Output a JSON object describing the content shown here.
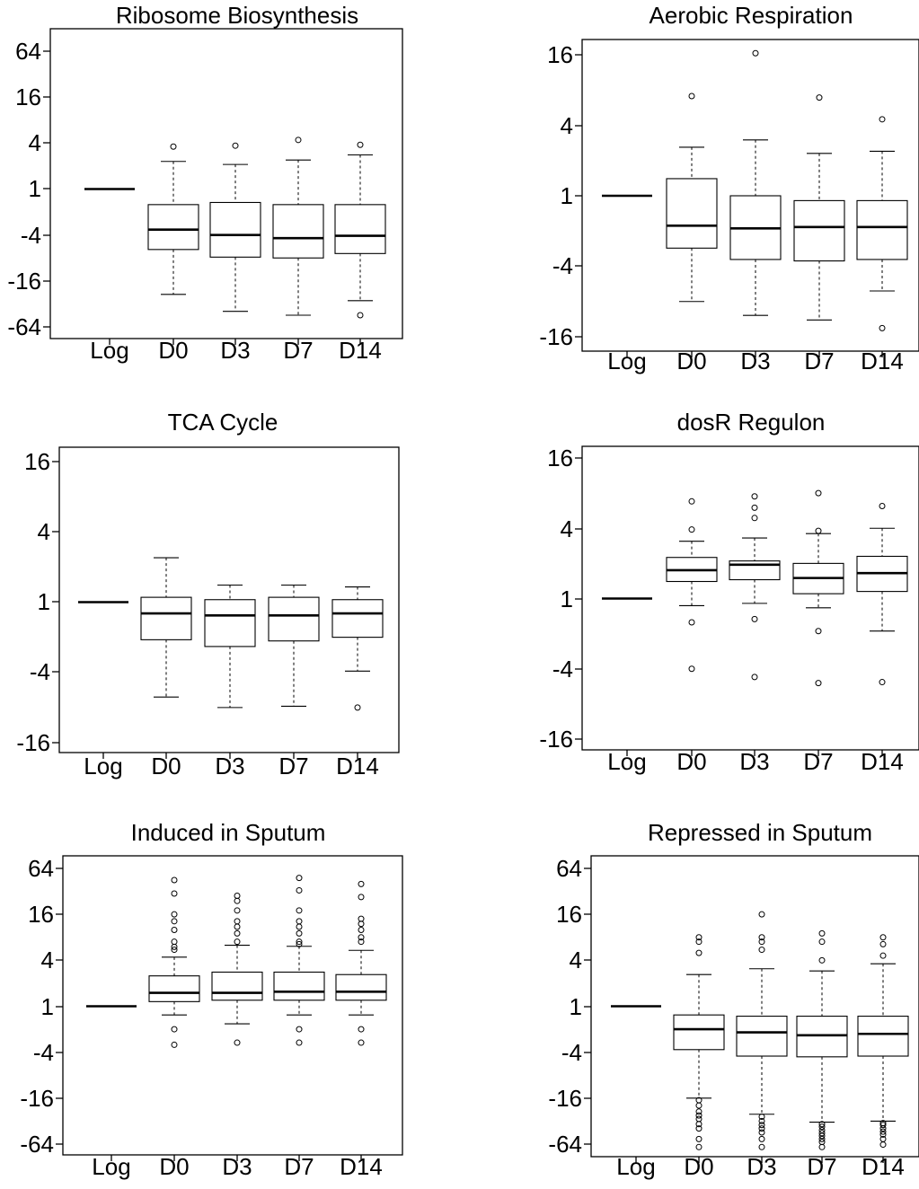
{
  "chart_data": [
    {
      "type": "boxplot",
      "title": "Ribosome Biosynthesis",
      "y_scale": "log2",
      "yticks": [
        "64",
        "16",
        "4",
        "1",
        "-4",
        "-16",
        "-64"
      ],
      "ylim": [
        -90,
        90
      ],
      "categories": [
        "Log",
        "D0",
        "D3",
        "D7",
        "D14"
      ],
      "log_line": 1,
      "boxes": [
        {
          "low": -24,
          "q1": -6.2,
          "median": -3.4,
          "q3": -1.6,
          "high": 2.3,
          "outliers": [
            3.6
          ]
        },
        {
          "low": -40,
          "q1": -7.8,
          "median": -4.0,
          "q3": -1.5,
          "high": 2.1,
          "outliers": [
            3.7
          ]
        },
        {
          "low": -45,
          "q1": -8.0,
          "median": -4.4,
          "q3": -1.6,
          "high": 2.4,
          "outliers": [
            4.4
          ]
        },
        {
          "low": -29,
          "q1": -7.0,
          "median": -4.1,
          "q3": -1.6,
          "high": 2.8,
          "outliers": [
            3.8,
            -45
          ]
        }
      ]
    },
    {
      "type": "boxplot",
      "title": "Aerobic Respiration",
      "y_scale": "log2",
      "yticks": [
        "16",
        "4",
        "1",
        "-4",
        "-16"
      ],
      "ylim": [
        -22,
        22
      ],
      "categories": [
        "Log",
        "D0",
        "D3",
        "D7",
        "D14"
      ],
      "log_line": 1,
      "boxes": [
        {
          "low": -8.0,
          "q1": -2.8,
          "median": -1.8,
          "q3": 1.4,
          "high": 2.6,
          "outliers": [
            7.1
          ]
        },
        {
          "low": -10.5,
          "q1": -3.5,
          "median": -1.9,
          "q3": -1.0,
          "high": 3.0,
          "outliers": [
            16.5
          ]
        },
        {
          "low": -11.5,
          "q1": -3.6,
          "median": -1.85,
          "q3": -1.1,
          "high": 2.3,
          "outliers": [
            6.9
          ]
        },
        {
          "low": -6.5,
          "q1": -3.5,
          "median": -1.85,
          "q3": -1.1,
          "high": 2.4,
          "outliers": [
            4.5,
            -13.5
          ]
        }
      ]
    },
    {
      "type": "boxplot",
      "title": "TCA Cycle",
      "y_scale": "log2",
      "yticks": [
        "16",
        "4",
        "1",
        "-4",
        "-16"
      ],
      "ylim": [
        -22,
        22
      ],
      "categories": [
        "Log",
        "D0",
        "D3",
        "D7",
        "D14"
      ],
      "log_line": 1,
      "boxes": [
        {
          "low": -6.5,
          "q1": -2.1,
          "median": -1.25,
          "q3": 1.1,
          "high": 2.4,
          "outliers": []
        },
        {
          "low": -8.0,
          "q1": -2.4,
          "median": -1.3,
          "q3": 1.05,
          "high": 1.4,
          "outliers": []
        },
        {
          "low": -7.8,
          "q1": -2.15,
          "median": -1.3,
          "q3": 1.1,
          "high": 1.4,
          "outliers": []
        },
        {
          "low": -3.9,
          "q1": -2.0,
          "median": -1.25,
          "q3": 1.05,
          "high": 1.35,
          "outliers": [
            -8.0
          ]
        }
      ]
    },
    {
      "type": "boxplot",
      "title": "dosR Regulon",
      "y_scale": "log2",
      "yticks": [
        "16",
        "4",
        "1",
        "-4",
        "-16"
      ],
      "ylim": [
        -22,
        22
      ],
      "categories": [
        "Log",
        "D0",
        "D3",
        "D7",
        "D14"
      ],
      "log_line": 1,
      "boxes": [
        {
          "low": -1.15,
          "q1": 1.4,
          "median": 1.75,
          "q3": 2.25,
          "high": 3.1,
          "outliers": [
            6.8,
            3.9,
            -1.6,
            -4.0
          ]
        },
        {
          "low": -1.1,
          "q1": 1.45,
          "median": 1.95,
          "q3": 2.1,
          "high": 3.3,
          "outliers": [
            7.5,
            6.0,
            4.9,
            -1.5,
            -4.7
          ]
        },
        {
          "low": -1.2,
          "q1": 1.1,
          "median": 1.5,
          "q3": 2.0,
          "high": 3.6,
          "outliers": [
            8.0,
            3.8,
            -1.9,
            -5.3
          ]
        },
        {
          "low": -1.9,
          "q1": 1.15,
          "median": 1.65,
          "q3": 2.3,
          "high": 4.0,
          "outliers": [
            6.2,
            -5.2
          ]
        }
      ]
    },
    {
      "type": "boxplot",
      "title": "Induced in Sputum",
      "y_scale": "log2",
      "yticks": [
        "64",
        "16",
        "4",
        "1",
        "-4",
        "-16",
        "-64"
      ],
      "ylim": [
        -90,
        90
      ],
      "categories": [
        "Log",
        "D0",
        "D3",
        "D7",
        "D14"
      ],
      "log_line": 1,
      "boxes": [
        {
          "low": -1.3,
          "q1": 1.15,
          "median": 1.5,
          "q3": 2.5,
          "high": 4.4,
          "outliers": [
            45,
            30,
            16,
            13,
            10,
            7,
            6,
            5.5,
            -2.0,
            -3.2
          ]
        },
        {
          "low": -1.7,
          "q1": 1.2,
          "median": 1.5,
          "q3": 2.8,
          "high": 6.3,
          "outliers": [
            28,
            24,
            18,
            13,
            11,
            9,
            7,
            -3.0
          ]
        },
        {
          "low": -1.3,
          "q1": 1.2,
          "median": 1.55,
          "q3": 2.8,
          "high": 6.1,
          "outliers": [
            48,
            33,
            18,
            13,
            11,
            9,
            7,
            6.5,
            -2.0,
            -3.0
          ]
        },
        {
          "low": -1.3,
          "q1": 1.2,
          "median": 1.55,
          "q3": 2.6,
          "high": 5.4,
          "outliers": [
            40,
            27,
            14,
            12,
            10,
            8,
            7,
            -2.0,
            -3.0
          ]
        }
      ]
    },
    {
      "type": "boxplot",
      "title": "Repressed in Sputum",
      "y_scale": "log2",
      "yticks": [
        "64",
        "16",
        "4",
        "1",
        "-4",
        "-16",
        "-64"
      ],
      "ylim": [
        -80,
        90
      ],
      "categories": [
        "Log",
        "D0",
        "D3",
        "D7",
        "D14"
      ],
      "log_line": 1,
      "boxes": [
        {
          "low": -16,
          "q1": -3.7,
          "median": -2.0,
          "q3": -1.3,
          "high": 2.6,
          "outliers": [
            8,
            7,
            5,
            -17,
            -20,
            -24,
            -27,
            -30,
            -35,
            -40,
            -55,
            -70
          ]
        },
        {
          "low": -26,
          "q1": -4.5,
          "median": -2.2,
          "q3": -1.35,
          "high": 3.1,
          "outliers": [
            16,
            8,
            7,
            5.5,
            -28,
            -32,
            -36,
            -40,
            -45,
            -55,
            -70
          ]
        },
        {
          "low": -33,
          "q1": -4.6,
          "median": -2.4,
          "q3": -1.35,
          "high": 2.9,
          "outliers": [
            9,
            7,
            4,
            -35,
            -38,
            -42,
            -46,
            -50,
            -55,
            -60,
            -70
          ]
        },
        {
          "low": -32,
          "q1": -4.5,
          "median": -2.3,
          "q3": -1.35,
          "high": 3.6,
          "outliers": [
            8,
            6.5,
            4.6,
            -34,
            -36,
            -40,
            -44,
            -48,
            -55,
            -65
          ]
        }
      ]
    }
  ]
}
